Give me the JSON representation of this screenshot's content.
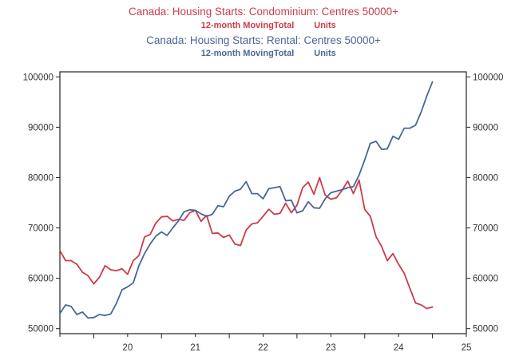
{
  "colors": {
    "condo": "#cc3b4a",
    "rental": "#4a6698",
    "axis": "#222222",
    "tick_text": "#333333"
  },
  "chart_data": {
    "type": "line",
    "titles": [
      {
        "main": "Canada: Housing Starts: Condominium: Centres 50000+",
        "sub_measure": "12-month MovingTotal",
        "sub_unit": "Units",
        "color_key": "condo"
      },
      {
        "main": "Canada: Housing Starts: Rental: Centres 50000+",
        "sub_measure": "12-month MovingTotal",
        "sub_unit": "Units",
        "color_key": "rental"
      }
    ],
    "x_start": 2019.5,
    "x_step": 0.0833333,
    "xlim": [
      2019.5,
      2025.5
    ],
    "x_ticks": [
      {
        "label": "20",
        "value": 2020.0
      },
      {
        "label": "21",
        "value": 2021.0
      },
      {
        "label": "22",
        "value": 2022.0
      },
      {
        "label": "23",
        "value": 2023.0
      },
      {
        "label": "24",
        "value": 2024.0
      },
      {
        "label": "25",
        "value": 2025.0
      }
    ],
    "ylim": [
      49000,
      101000
    ],
    "y_ticks": [
      "50000",
      "60000",
      "70000",
      "80000",
      "90000",
      "100000"
    ],
    "y_tick_values": [
      50000,
      60000,
      70000,
      80000,
      90000,
      100000
    ],
    "grid": false,
    "series": [
      {
        "color_key": "condo",
        "values": [
          65500,
          63500,
          63500,
          62800,
          61200,
          60500,
          58900,
          60200,
          62500,
          61700,
          61500,
          61900,
          60800,
          63500,
          64500,
          68200,
          68700,
          71000,
          72200,
          72300,
          71400,
          71700,
          71500,
          73000,
          73500,
          71300,
          72500,
          68900,
          69000,
          68100,
          68600,
          66800,
          66500,
          69600,
          70800,
          71000,
          72300,
          73700,
          72700,
          72900,
          74900,
          73000,
          74500,
          78000,
          79100,
          76700,
          80000,
          76500,
          75700,
          76000,
          77500,
          79300,
          76800,
          79500,
          73700,
          72300,
          68300,
          66300,
          63500,
          64900,
          62800,
          61000,
          58000,
          55100,
          54700,
          54000,
          54300
        ]
      },
      {
        "color_key": "rental",
        "values": [
          53000,
          54700,
          54400,
          52800,
          53300,
          52100,
          52200,
          52800,
          52600,
          52900,
          55000,
          57700,
          58300,
          59100,
          62500,
          64900,
          66800,
          68400,
          69200,
          68500,
          70000,
          71400,
          73200,
          73600,
          73500,
          72800,
          72300,
          72700,
          74400,
          74200,
          76300,
          77300,
          77700,
          79200,
          76800,
          76800,
          75800,
          77800,
          78000,
          78200,
          75400,
          75500,
          73000,
          73400,
          75200,
          74000,
          73900,
          75800,
          77000,
          77300,
          77600,
          78000,
          78200,
          80500,
          83500,
          86800,
          87200,
          85600,
          85700,
          88200,
          87600,
          89800,
          89800,
          90400,
          93000,
          96200,
          99000
        ]
      }
    ]
  }
}
